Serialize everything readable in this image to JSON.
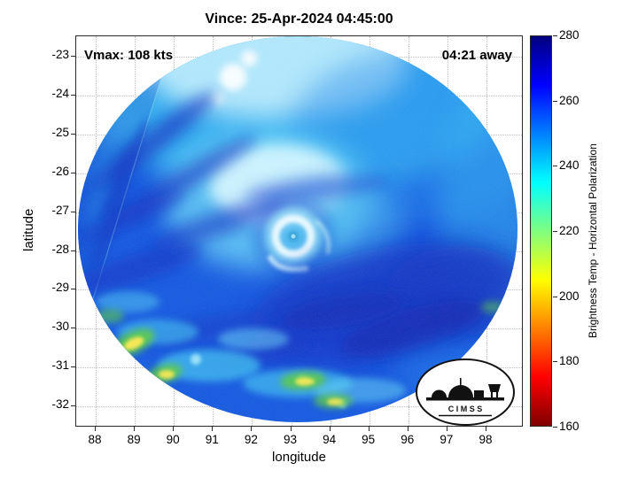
{
  "title": "Vince: 25-Apr-2024 04:45:00",
  "overlay": {
    "vmax": "Vmax: 108 kts",
    "eta": "04:21 away"
  },
  "axes": {
    "xlabel": "longitude",
    "ylabel": "latitude",
    "x_ticks": [
      "88",
      "89",
      "90",
      "91",
      "92",
      "93",
      "94",
      "95",
      "96",
      "97",
      "98"
    ],
    "y_ticks": [
      "-23",
      "-24",
      "-25",
      "-26",
      "-27",
      "-28",
      "-29",
      "-30",
      "-31",
      "-32"
    ]
  },
  "colorbar": {
    "label": "Brightness Temp - Horizontal Polarization",
    "tick_labels": [
      "280",
      "260",
      "240",
      "220",
      "200",
      "180",
      "160"
    ],
    "min": 160,
    "max": 280
  },
  "logo": {
    "text": "C I M S S"
  },
  "chart_data": {
    "type": "heatmap",
    "title": "Vince: 25-Apr-2024 04:45:00",
    "xlabel": "longitude",
    "ylabel": "latitude",
    "xlim": [
      87.5,
      99.0
    ],
    "ylim": [
      -32.5,
      -22.5
    ],
    "grid": true,
    "legend_position": "none",
    "colorbar": {
      "label": "Brightness Temp - Horizontal Polarization",
      "range": [
        160,
        280
      ],
      "ticks": [
        160,
        180,
        200,
        220,
        240,
        260,
        280
      ],
      "colormap": "reversed-jet",
      "color_stops": {
        "280": "#000080",
        "265": "#0000ff",
        "235": "#00ffff",
        "220": "#80ff80",
        "205": "#ffff00",
        "175": "#ff0000",
        "160": "#800000"
      }
    },
    "annotations": [
      {
        "text": "Vmax: 108 kts",
        "position": "top-left-inside"
      },
      {
        "text": "04:21 away",
        "position": "top-right-inside"
      }
    ],
    "swath": {
      "shape": "circular",
      "center_lon": 93.2,
      "center_lat": -27.5,
      "radius_deg": 5.6
    },
    "features": [
      {
        "name": "eye",
        "lon": 93.1,
        "lat": -27.6,
        "desc": "small eye with bright white eyewall ring, Tb ~230-245 K"
      },
      {
        "name": "inner-core-band",
        "lon_range": [
          91.5,
          94.0
        ],
        "lat_range": [
          -28.2,
          -26.3
        ],
        "desc": "light cyan/white comma cloud, Tb ~235-255 K"
      },
      {
        "name": "northern-shield",
        "lat_range": [
          -25.5,
          -22.8
        ],
        "desc": "cyan to near-white field, Tb ~240-255 K"
      },
      {
        "name": "southeast-dark-band",
        "lon_range": [
          93.5,
          97.5
        ],
        "lat_range": [
          -30.5,
          -28.5
        ],
        "desc": "dark blue band, Tb ~265-278 K"
      },
      {
        "name": "warm-spot-sw-1",
        "lon": 89.0,
        "lat": -30.4,
        "desc": "yellow-green patch, Tb ~200-215 K"
      },
      {
        "name": "warm-spot-sw-2",
        "lon": 89.8,
        "lat": -31.2,
        "desc": "yellow-green patch, Tb ~200-215 K"
      },
      {
        "name": "warm-spot-s-1",
        "lon": 93.3,
        "lat": -31.3,
        "desc": "yellow-green patch, Tb ~200-215 K"
      },
      {
        "name": "warm-spot-s-2",
        "lon": 94.1,
        "lat": -31.9,
        "desc": "yellow-green patch, Tb ~200-215 K"
      },
      {
        "name": "swath-seam",
        "desc": "straight scan-edge seam running from ~(90.0, -23.5) to ~(88.1, -29.1)"
      }
    ]
  }
}
